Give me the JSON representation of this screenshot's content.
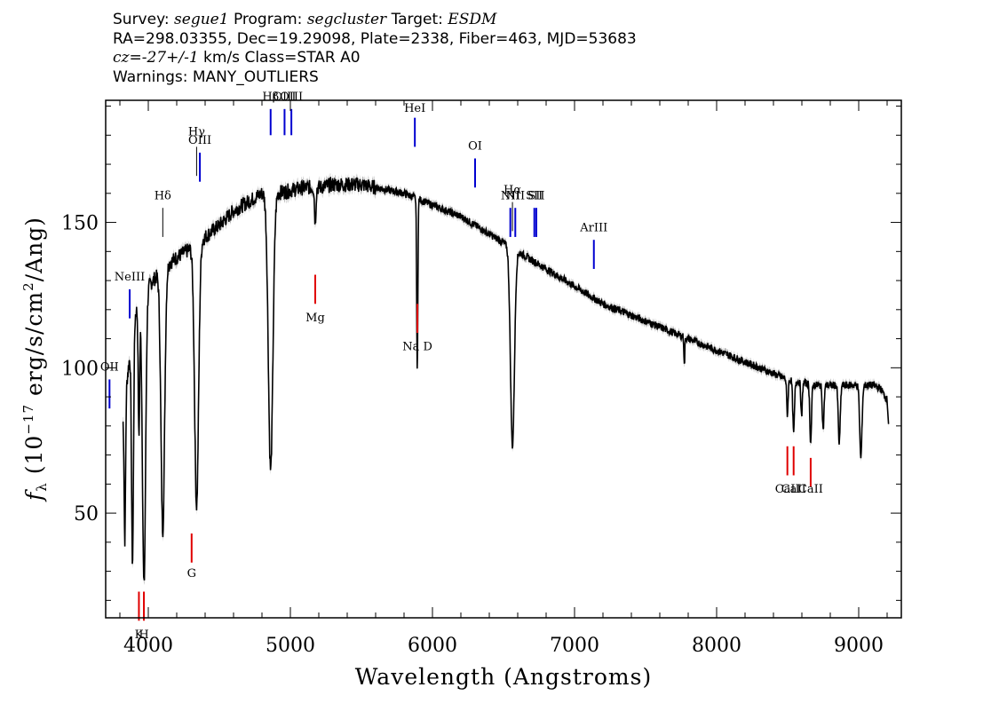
{
  "header": {
    "survey_label": "Survey:",
    "survey": "segue1",
    "program_label": "Program:",
    "program": "segcluster",
    "target_label": "Target:",
    "target": "ESDM",
    "line2": "RA=298.03355, Dec=19.29098, Plate=2338, Fiber=463, MJD=53683",
    "cz_label": "cz",
    "cz_value": "=-27+/-1",
    "cz_unit": "km/s",
    "class_text": "Class=STAR A0",
    "warnings": "Warnings: MANY_OUTLIERS"
  },
  "chart_data": {
    "type": "line",
    "title": "",
    "xlabel": "Wavelength (Angstroms)",
    "ylabel_main": "(10",
    "ylabel_exp": "−17",
    "ylabel_units": "erg/s/cm",
    "ylabel_sq": "2",
    "ylabel_tail": "/Ang)",
    "ylabel_symbol": "f",
    "ylabel_sub": "λ",
    "xlim": [
      3700,
      9300
    ],
    "ylim": [
      14,
      192
    ],
    "xticks": [
      4000,
      5000,
      6000,
      7000,
      8000,
      9000
    ],
    "xtick_labels": [
      "4000",
      "5000",
      "6000",
      "7000",
      "8000",
      "9000"
    ],
    "yticks": [
      50,
      100,
      150
    ],
    "ytick_labels": [
      "50",
      "100",
      "150"
    ],
    "grid": false,
    "colors": {
      "spectrum": "#000000",
      "error_band": "#b5b5b5",
      "emission": "#0000d0",
      "absorption": "#e00000",
      "neutral": "#000000"
    },
    "continuum": [
      [
        3820,
        82
      ],
      [
        3900,
        118
      ],
      [
        4000,
        128
      ],
      [
        4100,
        134
      ],
      [
        4200,
        138
      ],
      [
        4300,
        141
      ],
      [
        4400,
        145
      ],
      [
        4500,
        149
      ],
      [
        4600,
        154
      ],
      [
        4700,
        157
      ],
      [
        4800,
        160
      ],
      [
        4900,
        160
      ],
      [
        5000,
        161
      ],
      [
        5100,
        162
      ],
      [
        5200,
        162
      ],
      [
        5300,
        163
      ],
      [
        5400,
        163
      ],
      [
        5500,
        163
      ],
      [
        5600,
        162
      ],
      [
        5700,
        161
      ],
      [
        5800,
        160
      ],
      [
        5900,
        158
      ],
      [
        6000,
        156
      ],
      [
        6100,
        154
      ],
      [
        6200,
        152
      ],
      [
        6300,
        149
      ],
      [
        6400,
        146
      ],
      [
        6500,
        143
      ],
      [
        6600,
        140
      ],
      [
        6700,
        137
      ],
      [
        6800,
        134
      ],
      [
        6900,
        131
      ],
      [
        7000,
        128
      ],
      [
        7100,
        125
      ],
      [
        7200,
        122
      ],
      [
        7300,
        120
      ],
      [
        7400,
        118
      ],
      [
        7500,
        116
      ],
      [
        7600,
        114
      ],
      [
        7700,
        112
      ],
      [
        7800,
        110
      ],
      [
        7900,
        108
      ],
      [
        8000,
        106
      ],
      [
        8100,
        104
      ],
      [
        8200,
        102
      ],
      [
        8300,
        100
      ],
      [
        8400,
        98
      ],
      [
        8500,
        96
      ],
      [
        8600,
        95
      ],
      [
        8700,
        94
      ],
      [
        8800,
        94
      ],
      [
        8900,
        94
      ],
      [
        9000,
        94
      ],
      [
        9100,
        94
      ],
      [
        9150,
        93
      ],
      [
        9200,
        89
      ],
      [
        9210,
        81
      ]
    ],
    "absorption_features": [
      {
        "wavelength": 3835,
        "depth": 48,
        "width": 5
      },
      {
        "wavelength": 3889,
        "depth": 80,
        "width": 7
      },
      {
        "wavelength": 3934,
        "depth": 45,
        "width": 5
      },
      {
        "wavelength": 3970,
        "depth": 100,
        "width": 11
      },
      {
        "wavelength": 4102,
        "depth": 90,
        "width": 13
      },
      {
        "wavelength": 4340,
        "depth": 90,
        "width": 14
      },
      {
        "wavelength": 4861,
        "depth": 95,
        "width": 16
      },
      {
        "wavelength": 5175,
        "depth": 12,
        "width": 5
      },
      {
        "wavelength": 5893,
        "depth": 60,
        "width": 4
      },
      {
        "wavelength": 6563,
        "depth": 68,
        "width": 14
      },
      {
        "wavelength": 7773,
        "depth": 10,
        "width": 3
      },
      {
        "wavelength": 8498,
        "depth": 12,
        "width": 5
      },
      {
        "wavelength": 8542,
        "depth": 18,
        "width": 6
      },
      {
        "wavelength": 8598,
        "depth": 12,
        "width": 5
      },
      {
        "wavelength": 8662,
        "depth": 20,
        "width": 6
      },
      {
        "wavelength": 8750,
        "depth": 15,
        "width": 6
      },
      {
        "wavelength": 8863,
        "depth": 20,
        "width": 7
      },
      {
        "wavelength": 9015,
        "depth": 25,
        "width": 8
      }
    ],
    "emission_lines": [
      {
        "label": "OII",
        "wavelength": 3727,
        "y1": 86,
        "y2": 96,
        "label_y": 99
      },
      {
        "label": "NeIII",
        "wavelength": 3869,
        "y1": 117,
        "y2": 127,
        "label_y": 130
      },
      {
        "label": "OIII",
        "wavelength": 4363,
        "y1": 164,
        "y2": 174,
        "label_y": 177
      },
      {
        "label": "Hβ",
        "wavelength": 4861,
        "y1": 180,
        "y2": 189,
        "label_y": 192
      },
      {
        "label": "OIII",
        "wavelength": 4959,
        "y1": 180,
        "y2": 189,
        "label_y": 192
      },
      {
        "label": "OIII",
        "wavelength": 5007,
        "y1": 180,
        "y2": 189,
        "label_y": 192
      },
      {
        "label": "HeI",
        "wavelength": 5876,
        "y1": 176,
        "y2": 186,
        "label_y": 188
      },
      {
        "label": "OI",
        "wavelength": 6300,
        "y1": 162,
        "y2": 172,
        "label_y": 175
      },
      {
        "label": "NII",
        "wavelength": 6548,
        "y1": 145,
        "y2": 155,
        "label_y": 158
      },
      {
        "label": "NII",
        "wavelength": 6583,
        "y1": 145,
        "y2": 155,
        "label_y": 158
      },
      {
        "label": "SII",
        "wavelength": 6717,
        "y1": 145,
        "y2": 155,
        "label_y": 158
      },
      {
        "label": "SII",
        "wavelength": 6731,
        "y1": 145,
        "y2": 155,
        "label_y": 158
      },
      {
        "label": "ArIII",
        "wavelength": 7136,
        "y1": 134,
        "y2": 144,
        "label_y": 147
      }
    ],
    "absorption_lines": [
      {
        "label": "K",
        "wavelength": 3934,
        "y1": 13,
        "y2": 23,
        "label_y": 7
      },
      {
        "label": "H",
        "wavelength": 3969,
        "y1": 13,
        "y2": 23,
        "label_y": 7
      },
      {
        "label": "G",
        "wavelength": 4305,
        "y1": 33,
        "y2": 43,
        "label_y": 28
      },
      {
        "label": "Mg",
        "wavelength": 5175,
        "y1": 122,
        "y2": 132,
        "label_y": 116
      },
      {
        "label": "Na D",
        "wavelength": 5894,
        "y1": 112,
        "y2": 122,
        "label_y": 106
      },
      {
        "label": "CaII",
        "wavelength": 8498,
        "y1": 63,
        "y2": 73,
        "label_y": 57
      },
      {
        "label": "CaII",
        "wavelength": 8542,
        "y1": 63,
        "y2": 73,
        "label_y": 57
      },
      {
        "label": "CaII",
        "wavelength": 8662,
        "y1": 59,
        "y2": 69,
        "label_y": 57
      }
    ],
    "neutral_lines": [
      {
        "label": "Hδ",
        "wavelength": 4102,
        "y1": 145,
        "y2": 155,
        "label_y": 158
      },
      {
        "label": "Hγ",
        "wavelength": 4340,
        "y1": 166,
        "y2": 176,
        "label_y": 180
      },
      {
        "label": "Hα",
        "wavelength": 6563,
        "y1": 147,
        "y2": 157,
        "label_y": 160
      }
    ]
  }
}
